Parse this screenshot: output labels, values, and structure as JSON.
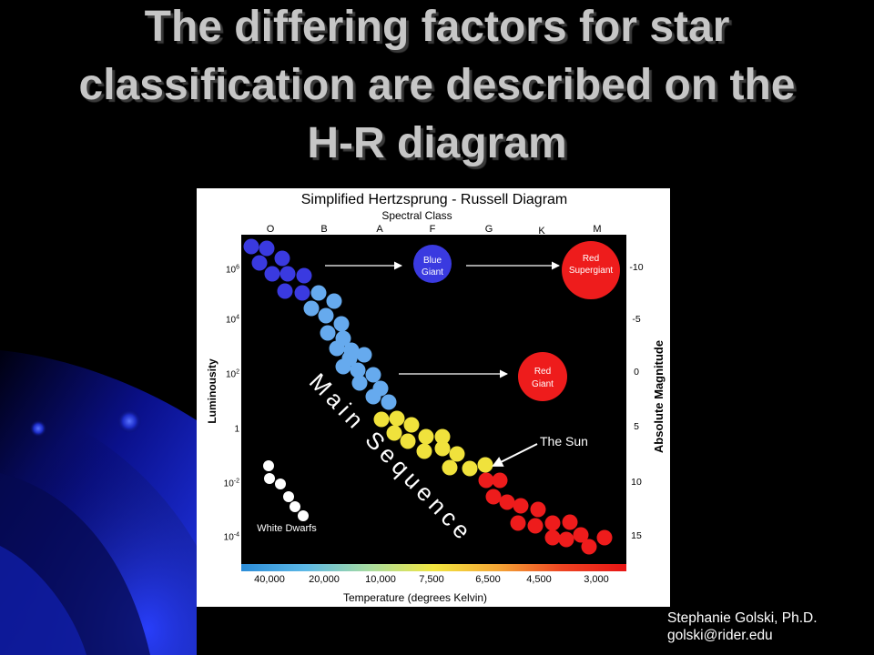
{
  "slide": {
    "title_lines": [
      "The differing factors for star",
      "classification are described on the",
      "H-R diagram"
    ],
    "credit": {
      "name": "Stephanie Golski, Ph.D.",
      "email": "golski@rider.edu"
    },
    "colors": {
      "background": "#000000",
      "title": "#c6c6c6",
      "accent": "#1e32e0"
    }
  },
  "diagram": {
    "title": "Simplified Hertzsprung - Russell Diagram",
    "spectral_class_label": "Spectral Class",
    "spectral_classes": [
      "O",
      "B",
      "A",
      "F",
      "G",
      "K",
      "M"
    ],
    "luminosity_label": "Luminousity",
    "luminosity_ticks": [
      {
        "base": "10",
        "exp": "6"
      },
      {
        "base": "10",
        "exp": "4"
      },
      {
        "base": "10",
        "exp": "2"
      },
      {
        "base": "1"
      },
      {
        "base": "10",
        "exp": "-2"
      },
      {
        "base": "10",
        "exp": "-4"
      }
    ],
    "magnitude_label": "Absolute Magnitude",
    "magnitude_ticks": [
      "-10",
      "-5",
      "0",
      "5",
      "10",
      "15"
    ],
    "temperature_label": "Temperature (degrees Kelvin)",
    "temperature_ticks": [
      "40,000",
      "20,000",
      "10,000",
      "7,500",
      "6,500",
      "4,500",
      "3,000"
    ],
    "labels": {
      "blue_giant": [
        "Blue",
        "Giant"
      ],
      "red_supergiant": [
        "Red",
        "Supergiant"
      ],
      "red_giant": [
        "Red",
        "Giant"
      ],
      "the_sun": "The Sun",
      "white_dwarfs": "White Dwarfs",
      "main_sequence": "Main Sequence"
    },
    "star_colors": {
      "hot_blue": "#3a3ae0",
      "blue_white": "#66aaee",
      "yellow": "#f0e23c",
      "red": "#ee1c1c",
      "white_dwarf": "#ffffff"
    },
    "temperature_scale_colors": [
      "#2b8cd8",
      "#5cb8e6",
      "#a8dca0",
      "#f2e640",
      "#f4a636",
      "#ee4422",
      "#e81414"
    ]
  }
}
